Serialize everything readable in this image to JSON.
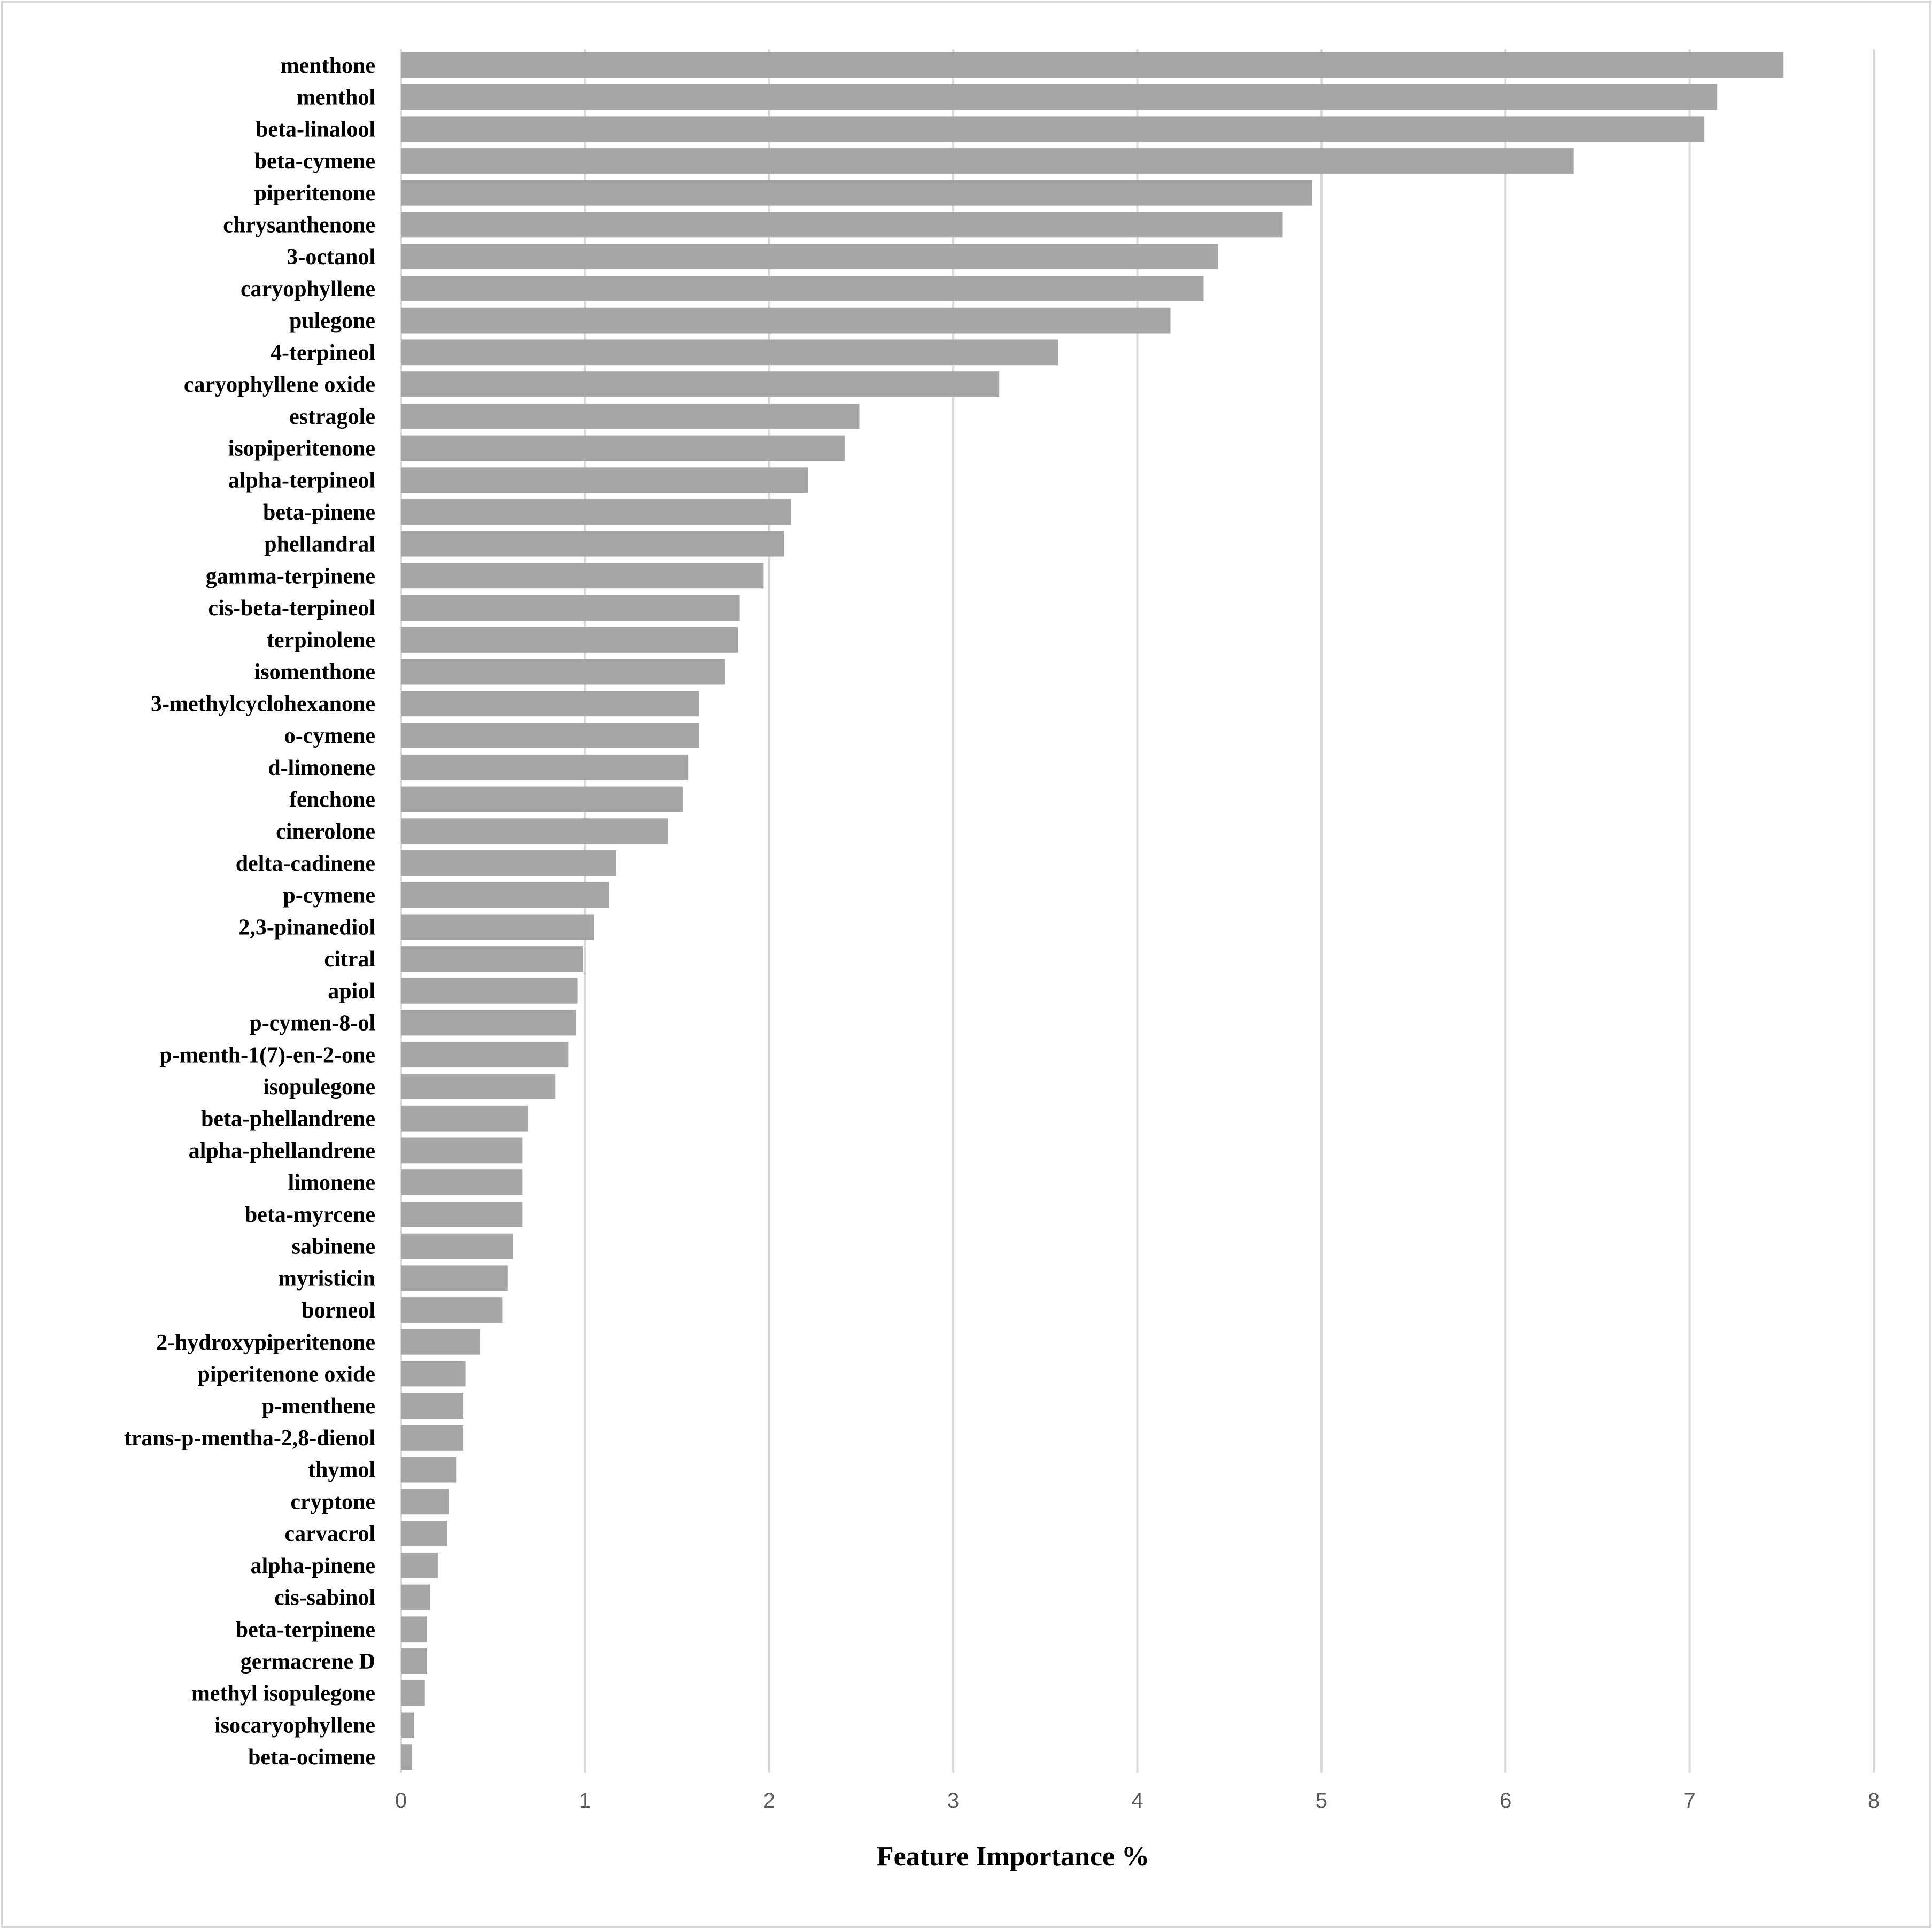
{
  "chart_data": {
    "type": "bar",
    "orientation": "horizontal",
    "xlabel": "Feature Importance %",
    "xlim": [
      0,
      8
    ],
    "x_ticks": [
      "0",
      "1",
      "2",
      "3",
      "4",
      "5",
      "6",
      "7",
      "8"
    ],
    "grid": "vertical",
    "legend": "none",
    "bar_color": "#a6a6a6",
    "grid_color": "#d9d9d9",
    "border_color": "#d9d9d9",
    "categories": [
      "menthone",
      "menthol",
      "beta-linalool",
      "beta-cymene",
      "piperitenone",
      "chrysanthenone",
      "3-octanol",
      "caryophyllene",
      "pulegone",
      "4-terpineol",
      "caryophyllene oxide",
      "estragole",
      "isopiperitenone",
      "alpha-terpineol",
      "beta-pinene",
      "phellandral",
      "gamma-terpinene",
      "cis-beta-terpineol",
      "terpinolene",
      "isomenthone",
      "3-methylcyclohexanone",
      "o-cymene",
      "d-limonene",
      "fenchone",
      "cinerolone",
      "delta-cadinene",
      "p-cymene",
      "2,3-pinanediol",
      "citral",
      "apiol",
      "p-cymen-8-ol",
      "p-menth-1(7)-en-2-one",
      "isopulegone",
      "beta-phellandrene",
      "alpha-phellandrene",
      "limonene",
      "beta-myrcene",
      "sabinene",
      "myristicin",
      "borneol",
      "2-hydroxypiperitenone",
      "piperitenone oxide",
      "p-menthene",
      "trans-p-mentha-2,8-dienol",
      "thymol",
      "cryptone",
      "carvacrol",
      "alpha-pinene",
      "cis-sabinol",
      "beta-terpinene",
      "germacrene D",
      "methyl isopulegone",
      "isocaryophyllene",
      "beta-ocimene"
    ],
    "values": [
      7.51,
      7.15,
      7.08,
      6.37,
      4.95,
      4.79,
      4.44,
      4.36,
      4.18,
      3.57,
      3.25,
      2.49,
      2.41,
      2.21,
      2.12,
      2.08,
      1.97,
      1.84,
      1.83,
      1.76,
      1.62,
      1.62,
      1.56,
      1.53,
      1.45,
      1.17,
      1.13,
      1.05,
      0.99,
      0.96,
      0.95,
      0.91,
      0.84,
      0.69,
      0.66,
      0.66,
      0.66,
      0.61,
      0.58,
      0.55,
      0.43,
      0.35,
      0.34,
      0.34,
      0.3,
      0.26,
      0.25,
      0.2,
      0.16,
      0.14,
      0.14,
      0.13,
      0.07,
      0.06
    ]
  }
}
